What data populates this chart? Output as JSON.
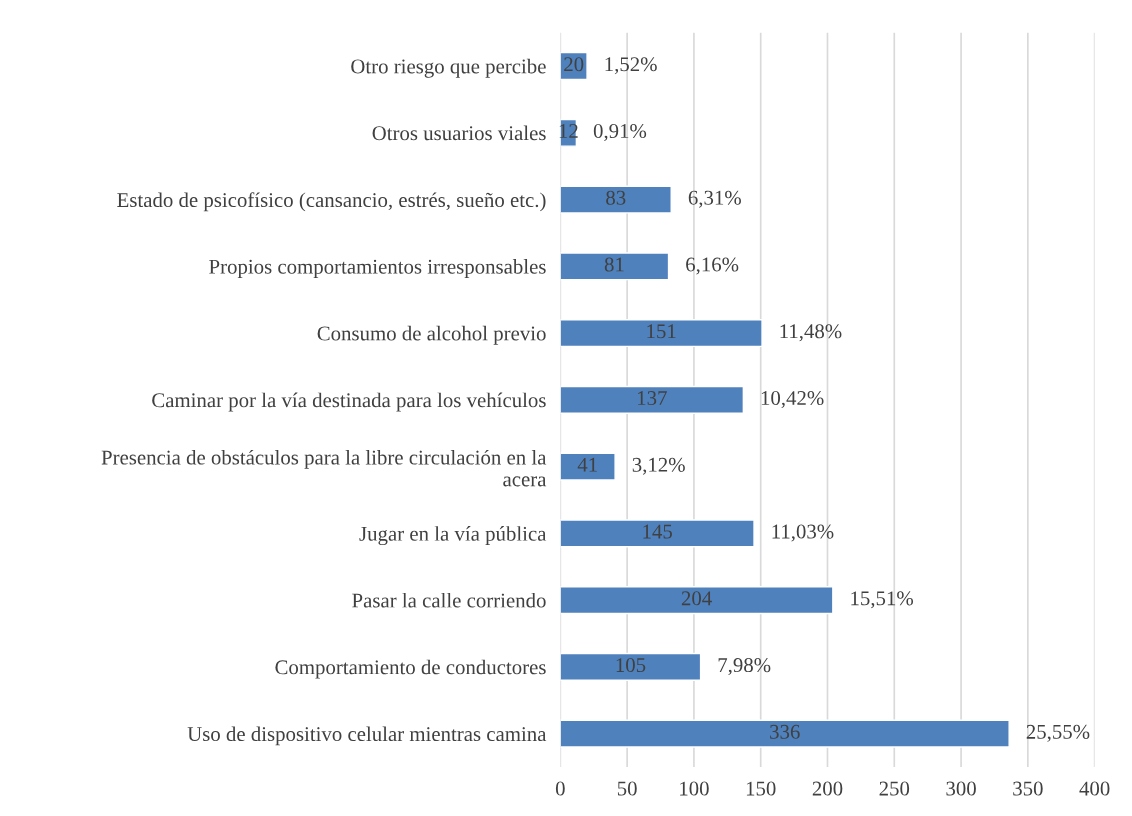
{
  "chart_data": {
    "type": "bar",
    "orientation": "horizontal",
    "categories": [
      "Otro riesgo que percibe",
      "Otros usuarios viales",
      "Estado de psicofísico (cansancio, estrés, sueño etc.)",
      "Propios comportamientos irresponsables",
      "Consumo de alcohol previo",
      "Caminar por la vía destinada para los vehículos",
      "Presencia de obstáculos para la libre circulación en la acera",
      "Jugar en la vía pública",
      "Pasar la calle corriendo",
      "Comportamiento de conductores",
      "Uso de dispositivo celular mientras camina"
    ],
    "values": [
      20,
      12,
      83,
      81,
      151,
      137,
      41,
      145,
      204,
      105,
      336
    ],
    "color": "#4f81bd",
    "data_labels": true,
    "xlim": [
      0,
      400
    ],
    "xticks": [
      0,
      50,
      100,
      150,
      200,
      250,
      300,
      350,
      400
    ],
    "grid": "x",
    "legend": false,
    "annotations": [
      {
        "text": "1,52%",
        "x": 20,
        "y": "Otro riesgo que percibe"
      },
      {
        "text": "0,91%",
        "x": 12,
        "y": "Otros usuarios viales"
      },
      {
        "text": "6,31%",
        "x": 83,
        "y": "Estado de psicofísico (cansancio, estrés, sueño etc.)"
      },
      {
        "text": "6,16%",
        "x": 81,
        "y": "Propios comportamientos irresponsables"
      },
      {
        "text": "11,48%",
        "x": 151,
        "y": "Consumo de alcohol previo"
      },
      {
        "text": "10,42%",
        "x": 137,
        "y": "Caminar por la vía destinada para los vehículos"
      },
      {
        "text": "3,12%",
        "x": 41,
        "y": "Presencia de obstáculos para la libre circulación en la acera"
      },
      {
        "text": "11,03%",
        "x": 145,
        "y": "Jugar en la vía pública"
      },
      {
        "text": "15,51%",
        "x": 204,
        "y": "Pasar la calle corriendo"
      },
      {
        "text": "7,98%",
        "x": 105,
        "y": "Comportamiento de conductores"
      },
      {
        "text": "25,55%",
        "x": 336,
        "y": "Uso de dispositivo celular mientras camina"
      }
    ]
  }
}
